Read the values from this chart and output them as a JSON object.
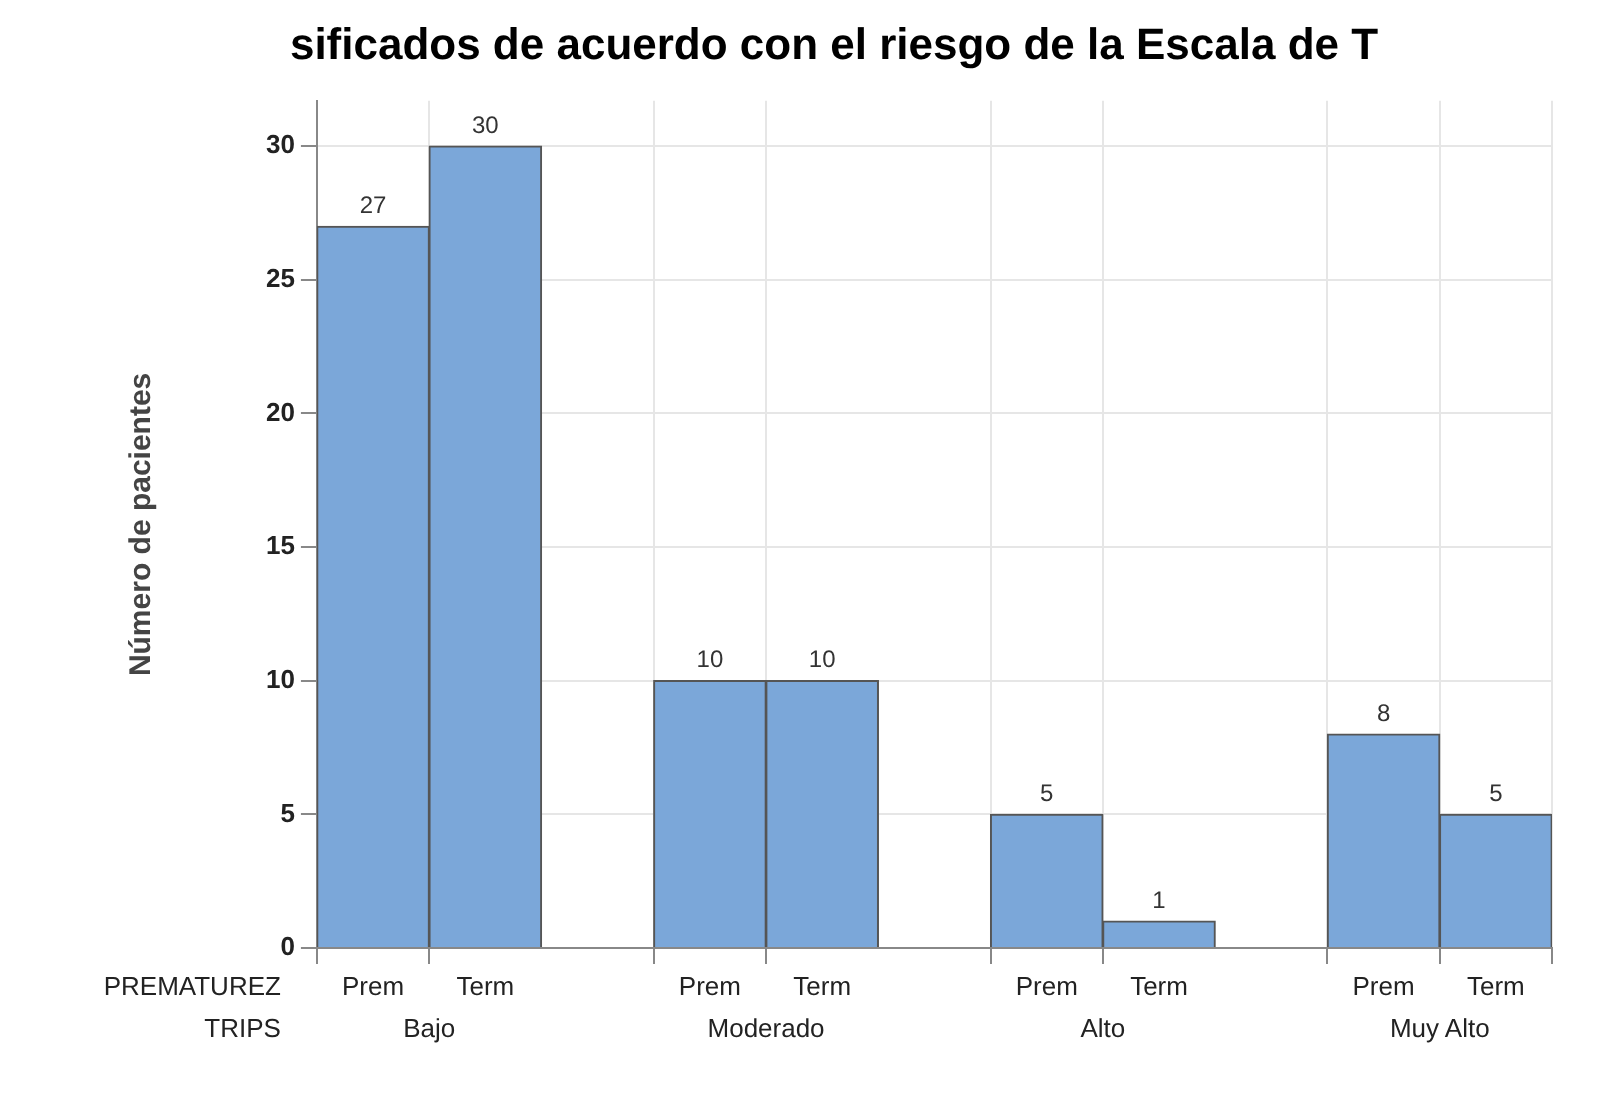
{
  "chart_data": {
    "type": "bar",
    "title": "sificados de acuerdo con el riesgo de la Escala de T",
    "ylabel": "Número de pacientes",
    "categories": [
      "Prem",
      "Term",
      null,
      "Prem",
      "Term",
      null,
      "Prem",
      "Term",
      null,
      "Prem",
      "Term"
    ],
    "values": [
      27,
      30,
      null,
      10,
      10,
      null,
      5,
      1,
      null,
      8,
      5
    ],
    "color": "#7ba7d9",
    "ylim": [
      0,
      31.7
    ],
    "yticks": [
      0,
      5,
      10,
      15,
      20,
      25,
      30
    ],
    "grid": true,
    "data_labels": true,
    "legend": false,
    "annotations": [
      "PREMATUREZ",
      "TRIPS",
      "Bajo",
      "Moderado",
      "Alto",
      "Muy Alto"
    ]
  }
}
